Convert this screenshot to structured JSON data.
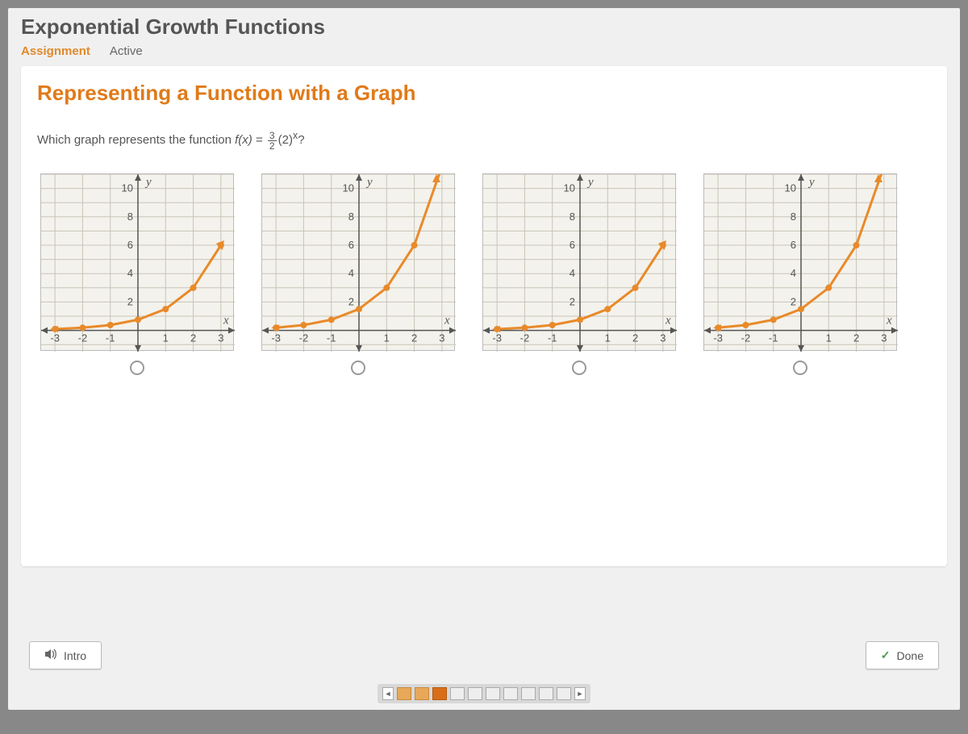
{
  "header": {
    "title": "Exponential Growth Functions",
    "assignment_label": "Assignment",
    "status": "Active"
  },
  "panel": {
    "title": "Representing a Function with a Graph",
    "question_prefix": "Which graph represents the function ",
    "question_fn": "f(x)",
    "question_eq": " = ",
    "question_frac_num": "3",
    "question_frac_den": "2",
    "question_base": "(2)",
    "question_exp": "x",
    "question_suffix": "?"
  },
  "graphs": {
    "x_ticks": [
      -3,
      -2,
      -1,
      1,
      2,
      3
    ],
    "y_ticks": [
      2,
      4,
      6,
      8,
      10
    ],
    "y_axis_label": "y",
    "x_axis_label": "x",
    "xlim": [
      -3.5,
      3.5
    ],
    "ylim": [
      -1.5,
      11
    ],
    "grid_background": "#f4f2ec",
    "grid_line_color": "#c8c4b8",
    "axis_color": "#555555",
    "curve_color": "#e88a2a",
    "curve_width": 3,
    "options": [
      {
        "id": "A",
        "points": [
          [
            -3,
            0.094
          ],
          [
            -2,
            0.188
          ],
          [
            -1,
            0.375
          ],
          [
            0,
            0.75
          ],
          [
            1,
            1.5
          ],
          [
            2,
            3
          ],
          [
            3,
            6
          ]
        ]
      },
      {
        "id": "B",
        "points": [
          [
            -3,
            0.188
          ],
          [
            -2,
            0.375
          ],
          [
            -1,
            0.75
          ],
          [
            0,
            1.5
          ],
          [
            1,
            3
          ],
          [
            2,
            6
          ],
          [
            3,
            12
          ]
        ]
      },
      {
        "id": "C",
        "points": [
          [
            -3,
            0.094
          ],
          [
            -2,
            0.188
          ],
          [
            -1,
            0.375
          ],
          [
            0,
            0.75
          ],
          [
            1,
            1.5
          ],
          [
            2,
            3
          ],
          [
            3,
            6
          ]
        ]
      },
      {
        "id": "D",
        "points": [
          [
            -3,
            0.188
          ],
          [
            -2,
            0.375
          ],
          [
            -1,
            0.75
          ],
          [
            0,
            1.5
          ],
          [
            1,
            3
          ],
          [
            2,
            6
          ],
          [
            3,
            12
          ]
        ]
      }
    ]
  },
  "footer": {
    "intro_label": "Intro",
    "done_label": "Done"
  },
  "progress": {
    "total": 10,
    "completed": 2,
    "current_index": 2
  }
}
